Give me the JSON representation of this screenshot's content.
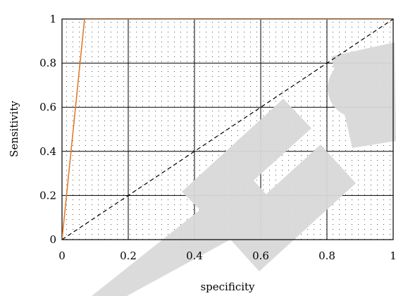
{
  "chart_data": {
    "type": "line",
    "xlabel": "specificity",
    "ylabel": "Sensitivity",
    "xlim": [
      0,
      1
    ],
    "ylim": [
      0,
      1
    ],
    "grid": true,
    "x_ticks": [
      0,
      0.2,
      0.4,
      0.6,
      0.8,
      1
    ],
    "x_tick_labels": [
      "0",
      "0.2",
      "0.4",
      "0.6",
      "0.8",
      "1"
    ],
    "y_ticks": [
      0,
      0.2,
      0.4,
      0.6,
      0.8,
      1
    ],
    "y_tick_labels": [
      "0",
      "0.2",
      "0.4",
      "0.6",
      "0.8",
      "1"
    ],
    "series": [
      {
        "x": [
          0,
          0.068,
          1
        ],
        "y": [
          0,
          1,
          1
        ],
        "color": "#e07b2a",
        "style": "solid"
      },
      {
        "x": [
          0,
          1
        ],
        "y": [
          0,
          1
        ],
        "color": "#000000",
        "style": "dashed"
      }
    ],
    "watermark_text": "RETRACTED",
    "watermark_color": "#d9d9d9"
  }
}
